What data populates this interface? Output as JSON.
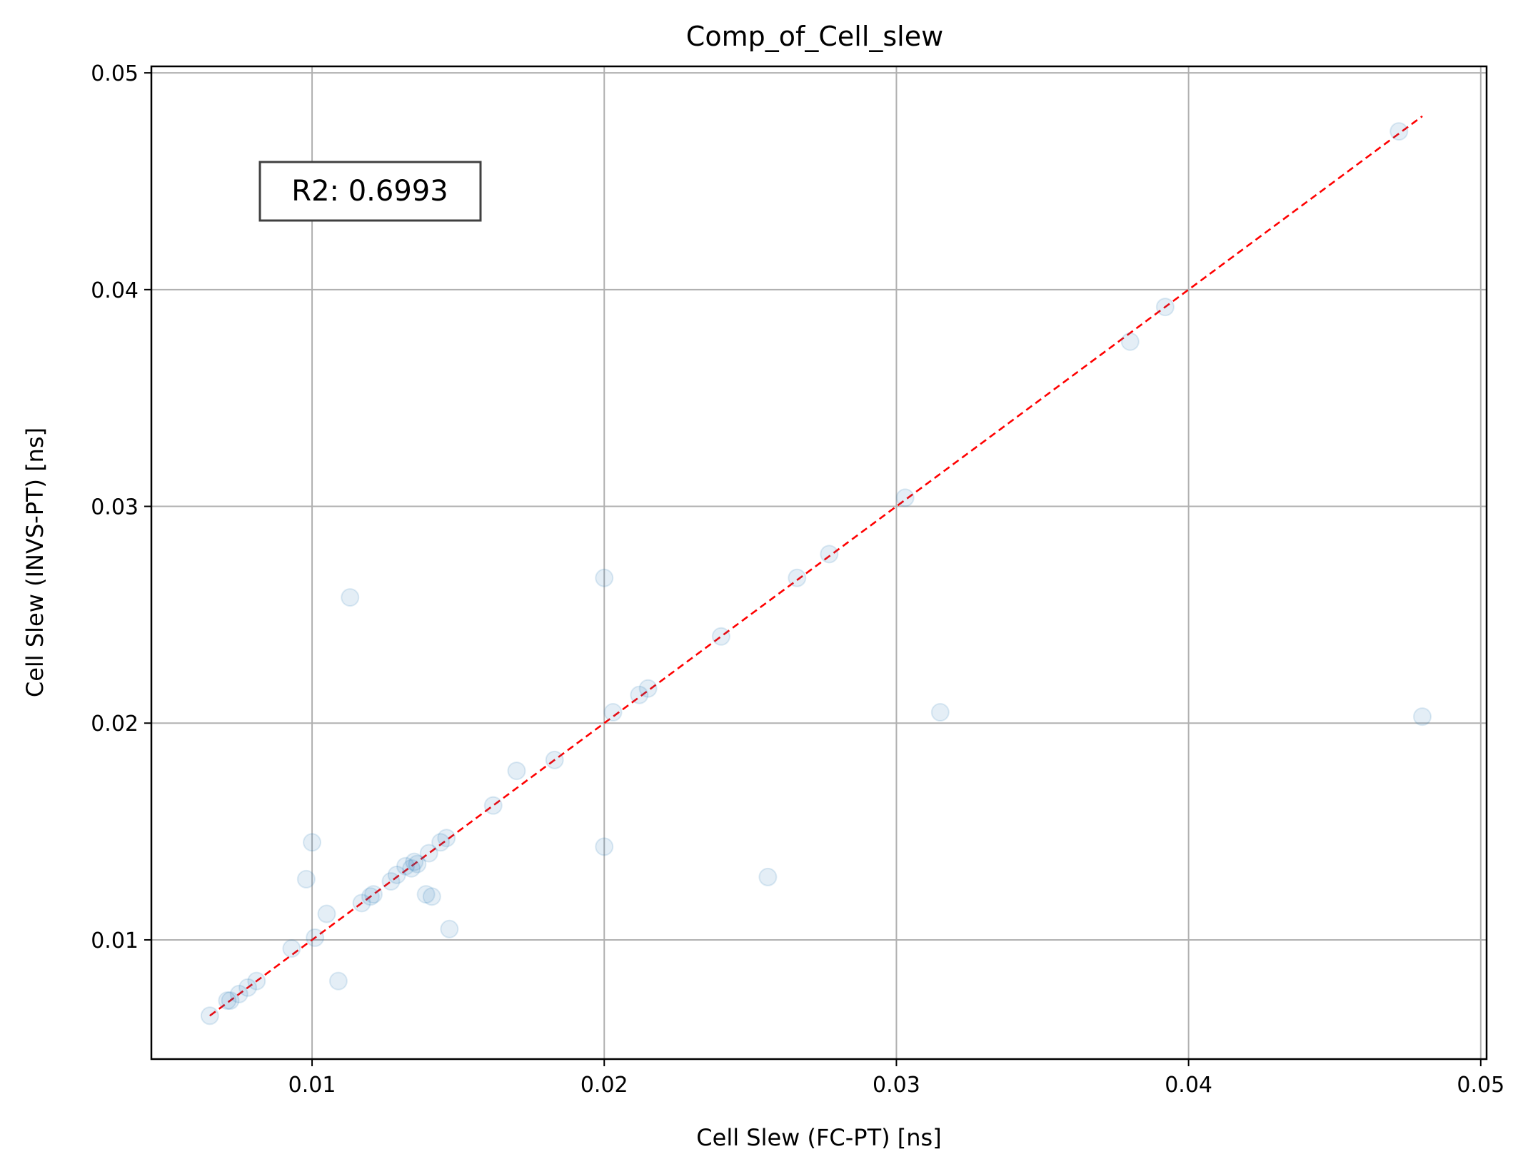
{
  "chart_data": {
    "type": "scatter",
    "title": "Comp_of_Cell_slew",
    "xlabel": "Cell Slew (FC-PT) [ns]",
    "ylabel": "Cell Slew (INVS-PT) [ns]",
    "xlim": [
      0.0045,
      0.0502
    ],
    "ylim": [
      0.0045,
      0.0503
    ],
    "xticks": [
      0.01,
      0.02,
      0.03,
      0.04,
      0.05
    ],
    "xtick_labels": [
      "0.01",
      "0.02",
      "0.03",
      "0.04",
      "0.05"
    ],
    "yticks": [
      0.01,
      0.02,
      0.03,
      0.04,
      0.05
    ],
    "ytick_labels": [
      "0.01",
      "0.02",
      "0.03",
      "0.04",
      "0.05"
    ],
    "grid": true,
    "annotation": "R2: 0.6993",
    "point_color": "#1f77b4",
    "reference_line": {
      "style": "dashed",
      "color": "#ff0000",
      "x": [
        0.0065,
        0.048
      ],
      "y": [
        0.0065,
        0.048
      ]
    },
    "series": [
      {
        "x": [
          0.0065,
          0.0071,
          0.0072,
          0.0075,
          0.0078,
          0.0081,
          0.0093,
          0.0098,
          0.01,
          0.0101,
          0.0105,
          0.0109,
          0.0113,
          0.0117,
          0.012,
          0.0121,
          0.0127,
          0.0129,
          0.0132,
          0.0134,
          0.0135,
          0.0136,
          0.0139,
          0.014,
          0.0141,
          0.0144,
          0.0146,
          0.0147,
          0.0162,
          0.017,
          0.0183,
          0.02,
          0.02,
          0.0203,
          0.0212,
          0.0215,
          0.024,
          0.0256,
          0.0266,
          0.0277,
          0.0303,
          0.0315,
          0.038,
          0.0392,
          0.0472,
          0.048
        ],
        "y": [
          0.0065,
          0.0072,
          0.0072,
          0.0075,
          0.0078,
          0.0081,
          0.0096,
          0.0128,
          0.0145,
          0.0101,
          0.0112,
          0.0081,
          0.0258,
          0.0117,
          0.012,
          0.0121,
          0.0127,
          0.013,
          0.0134,
          0.0133,
          0.0136,
          0.0135,
          0.0121,
          0.014,
          0.012,
          0.0145,
          0.0147,
          0.0105,
          0.0162,
          0.0178,
          0.0183,
          0.0267,
          0.0143,
          0.0205,
          0.0213,
          0.0216,
          0.024,
          0.0129,
          0.0267,
          0.0278,
          0.0304,
          0.0205,
          0.0376,
          0.0392,
          0.0473,
          0.0203
        ]
      }
    ]
  }
}
